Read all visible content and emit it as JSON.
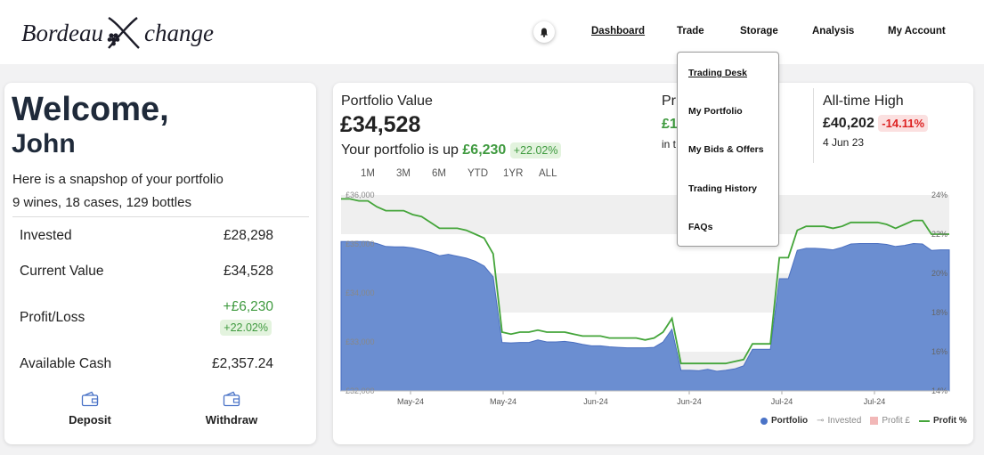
{
  "header": {
    "logo_left": "Bordeau",
    "logo_x": "X",
    "logo_right": "change",
    "nav": [
      "Dashboard",
      "Trade",
      "Storage",
      "Analysis",
      "My Account"
    ],
    "trade_menu": [
      "Trading Desk",
      "My Portfolio",
      "My Bids & Offers",
      "Trading History",
      "FAQs"
    ]
  },
  "summary": {
    "greeting": "Welcome,",
    "name": "John",
    "snapshot": "Here is a snapshop of your portfolio",
    "counts": "9 wines, 18 cases, 129 bottles",
    "invested_label": "Invested",
    "invested_value": "£28,298",
    "current_label": "Current Value",
    "current_value": "£34,528",
    "pl_label": "Profit/Loss",
    "pl_value": "+£6,230",
    "pl_pct": "+22.02%",
    "cash_label": "Available Cash",
    "cash_value": "£2,357.24",
    "deposit": "Deposit",
    "withdraw": "Withdraw"
  },
  "portfolio": {
    "title": "Portfolio Value",
    "value": "£34,528",
    "up_text": "Your portfolio is up",
    "up_amount": "£6,230",
    "up_pct": "+22.02%",
    "mid_title": "Pr",
    "mid_value": "£1",
    "mid_sub": "in t",
    "ath_title": "All-time High",
    "ath_value": "£40,202",
    "ath_pct": "-14.11%",
    "ath_date": "4 Jun 23",
    "ranges": [
      "1M",
      "3M",
      "6M",
      "YTD",
      "1YR",
      "ALL"
    ]
  },
  "colors": {
    "portfolio_fill": "#6b8ed1",
    "profit_line": "#44a53a",
    "positive": "#3f9a3f",
    "negative": "#d22222"
  },
  "chart_data": {
    "type": "area",
    "x_tick_labels": [
      "May-24",
      "May-24",
      "Jun-24",
      "Jun-24",
      "Jul-24",
      "Jul-24"
    ],
    "y_left_ticks": [
      "£32,000",
      "£33,000",
      "£34,000",
      "£35,000",
      "£36,000"
    ],
    "y_right_ticks": [
      "14%",
      "16%",
      "18%",
      "20%",
      "22%",
      "24%"
    ],
    "ylim_left": [
      32000,
      36000
    ],
    "ylim_right": [
      14,
      24
    ],
    "legend": [
      "Portfolio",
      "Invested",
      "Profit £",
      "Profit %"
    ],
    "legend_placement": "bottom-right",
    "series": [
      {
        "name": "Portfolio",
        "values": [
          35050,
          35050,
          35050,
          35050,
          35010,
          34950,
          34940,
          34940,
          34920,
          34880,
          34830,
          34760,
          34790,
          34750,
          34710,
          34650,
          34550,
          34330,
          32990,
          32980,
          32990,
          32990,
          33040,
          33000,
          33000,
          33010,
          32990,
          32950,
          32920,
          32920,
          32900,
          32890,
          32880,
          32880,
          32880,
          32890,
          33000,
          33260,
          32420,
          32420,
          32410,
          32440,
          32400,
          32420,
          32450,
          32510,
          32850,
          32850,
          32850,
          34290,
          34290,
          34870,
          34910,
          34910,
          34900,
          34880,
          34930,
          35000,
          35010,
          35010,
          35010,
          34990,
          34950,
          34970,
          35010,
          35000,
          34870,
          34880,
          34880
        ]
      },
      {
        "name": "Profit %",
        "values": [
          23.8,
          23.8,
          23.7,
          23.7,
          23.4,
          23.2,
          23.2,
          23.2,
          23.0,
          22.9,
          22.6,
          22.3,
          22.3,
          22.3,
          22.2,
          22.0,
          21.8,
          21.0,
          17.0,
          16.9,
          17.0,
          17.0,
          17.1,
          17.0,
          17.0,
          17.0,
          16.9,
          16.8,
          16.8,
          16.8,
          16.7,
          16.7,
          16.7,
          16.7,
          16.6,
          16.7,
          17.0,
          17.7,
          15.4,
          15.4,
          15.4,
          15.4,
          15.4,
          15.4,
          15.5,
          15.6,
          16.4,
          16.4,
          16.4,
          20.8,
          20.8,
          22.2,
          22.4,
          22.4,
          22.4,
          22.3,
          22.4,
          22.6,
          22.6,
          22.6,
          22.6,
          22.5,
          22.3,
          22.5,
          22.7,
          22.7,
          22.0,
          22.0,
          22.0
        ]
      }
    ]
  }
}
